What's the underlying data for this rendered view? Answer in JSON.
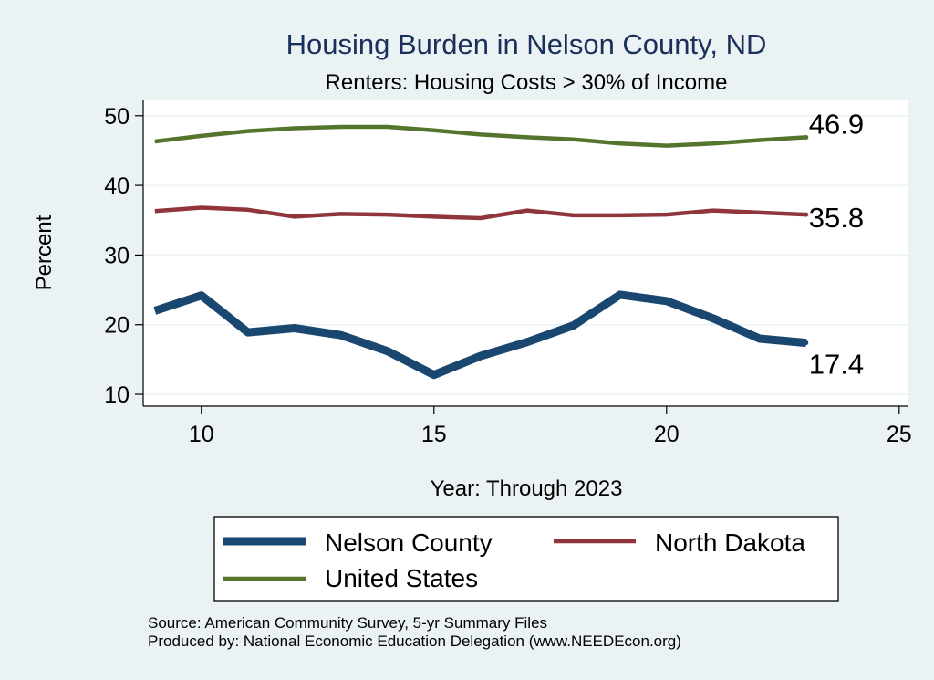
{
  "colors": {
    "background": "#eaf2f3",
    "plot_background": "#ffffff",
    "grid": "#eaf2f3",
    "title": "#1a2f5a",
    "nelson": "#1a476f",
    "north_dakota": "#90353b",
    "united_states": "#55752f"
  },
  "chart_data": {
    "type": "line",
    "title": "Housing Burden in Nelson County, ND",
    "subtitle": "Renters: Housing Costs > 30% of Income",
    "xlabel": "Year: Through 2023",
    "ylabel": "Percent",
    "xlim": [
      8.75,
      25.2
    ],
    "ylim": [
      8.3,
      52.2
    ],
    "x_ticks": [
      10,
      15,
      20,
      25
    ],
    "y_ticks": [
      10,
      20,
      30,
      40,
      50
    ],
    "grid": true,
    "legend_position": "bottom",
    "series": [
      {
        "name": "Nelson County",
        "color": "#1a476f",
        "line_width": "thick",
        "x": [
          9,
          10,
          11,
          12,
          13,
          14,
          15,
          16,
          17,
          18,
          19,
          20,
          21,
          22,
          23
        ],
        "values": [
          22.0,
          24.2,
          18.9,
          19.5,
          18.5,
          16.2,
          12.8,
          15.5,
          17.5,
          19.9,
          24.3,
          23.4,
          20.9,
          18.0,
          17.4
        ],
        "end_label": "17.4"
      },
      {
        "name": "North Dakota",
        "color": "#90353b",
        "line_width": "medium",
        "x": [
          9,
          10,
          11,
          12,
          13,
          14,
          15,
          16,
          17,
          18,
          19,
          20,
          21,
          22,
          23
        ],
        "values": [
          36.3,
          36.8,
          36.5,
          35.5,
          35.9,
          35.8,
          35.5,
          35.3,
          36.4,
          35.7,
          35.7,
          35.8,
          36.4,
          36.1,
          35.8
        ],
        "end_label": "35.8"
      },
      {
        "name": "United States",
        "color": "#55752f",
        "line_width": "medium",
        "x": [
          9,
          10,
          11,
          12,
          13,
          14,
          15,
          16,
          17,
          18,
          19,
          20,
          21,
          22,
          23
        ],
        "values": [
          46.3,
          47.1,
          47.8,
          48.2,
          48.4,
          48.4,
          47.9,
          47.3,
          46.9,
          46.6,
          46.0,
          45.7,
          46.0,
          46.5,
          46.9
        ],
        "end_label": "46.9"
      }
    ],
    "legend": [
      {
        "name": "Nelson County",
        "series": 0
      },
      {
        "name": "North Dakota",
        "series": 1
      },
      {
        "name": "United States",
        "series": 2
      }
    ],
    "source_lines": [
      "Source: American Community Survey, 5-yr Summary Files",
      "Produced by: National Economic Education Delegation (www.NEEDEcon.org)"
    ]
  }
}
